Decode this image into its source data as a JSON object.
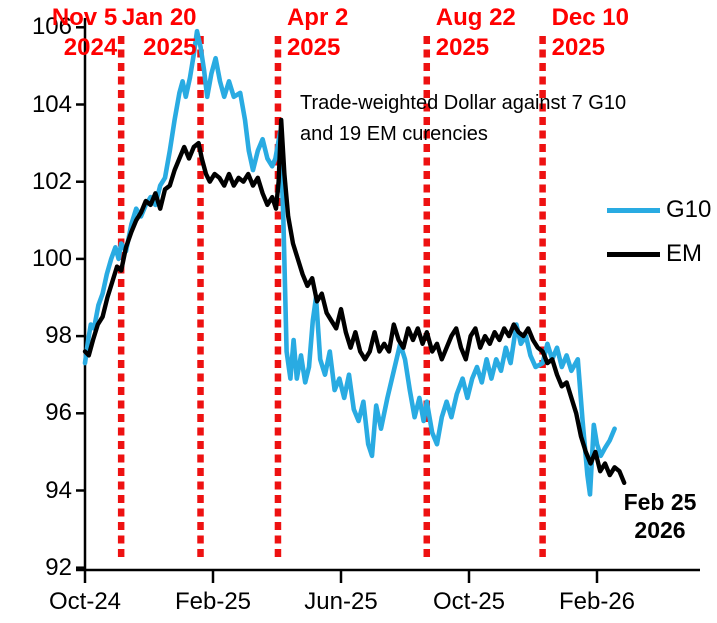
{
  "chart_data": {
    "type": "line",
    "annotation_lines": [
      "Trade-weighted Dollar against 7 G10",
      "and 19 EM curencies"
    ],
    "x_unit": "months since Oct-2024",
    "xlim": [
      0,
      19.2
    ],
    "ylim": [
      92,
      106
    ],
    "grid": false,
    "legend_position": "right",
    "y_ticks": [
      106,
      104,
      102,
      100,
      98,
      96,
      94,
      92
    ],
    "x_ticks": [
      {
        "pos": 0,
        "label": "Oct-24"
      },
      {
        "pos": 4,
        "label": "Feb-25"
      },
      {
        "pos": 8,
        "label": "Jun-25"
      },
      {
        "pos": 12,
        "label": "Oct-25"
      },
      {
        "pos": 16,
        "label": "Feb-26"
      }
    ],
    "event_lines": [
      {
        "pos": 1.13,
        "label_lines": [
          "Nov 5",
          "2024"
        ],
        "side": "left"
      },
      {
        "pos": 3.61,
        "label_lines": [
          "Jan 20",
          "2025"
        ],
        "side": "left"
      },
      {
        "pos": 6.03,
        "label_lines": [
          "Apr 2",
          "2025"
        ],
        "side": "right"
      },
      {
        "pos": 10.68,
        "label_lines": [
          "Aug 22",
          "2025"
        ],
        "side": "right"
      },
      {
        "pos": 14.3,
        "label_lines": [
          "Dec 10",
          "2025"
        ],
        "side": "right"
      }
    ],
    "end_label_lines": [
      "Feb 25",
      "2026"
    ],
    "colors": {
      "g10": "#29abe2",
      "em": "#000000",
      "event_line": "#ee1111",
      "event_text": "#ff0000",
      "axis": "#000000"
    },
    "legend": [
      {
        "name": "G10",
        "color": "#29abe2"
      },
      {
        "name": "EM",
        "color": "#000000"
      }
    ],
    "series": [
      {
        "name": "G10",
        "color": "#29abe2",
        "width": 4.6,
        "points": [
          [
            0.0,
            97.3
          ],
          [
            0.1,
            97.9
          ],
          [
            0.18,
            98.3
          ],
          [
            0.28,
            98.2
          ],
          [
            0.42,
            98.8
          ],
          [
            0.55,
            99.1
          ],
          [
            0.68,
            99.6
          ],
          [
            0.82,
            100.0
          ],
          [
            0.95,
            100.3
          ],
          [
            1.05,
            100.0
          ],
          [
            1.13,
            100.4
          ],
          [
            1.28,
            100.2
          ],
          [
            1.45,
            100.9
          ],
          [
            1.6,
            101.3
          ],
          [
            1.75,
            101.1
          ],
          [
            1.9,
            101.4
          ],
          [
            2.05,
            101.6
          ],
          [
            2.2,
            101.4
          ],
          [
            2.35,
            101.9
          ],
          [
            2.5,
            102.1
          ],
          [
            2.65,
            102.8
          ],
          [
            2.8,
            103.6
          ],
          [
            2.95,
            104.3
          ],
          [
            3.05,
            104.6
          ],
          [
            3.15,
            104.2
          ],
          [
            3.28,
            104.7
          ],
          [
            3.4,
            105.3
          ],
          [
            3.5,
            105.9
          ],
          [
            3.61,
            105.5
          ],
          [
            3.72,
            104.9
          ],
          [
            3.82,
            104.2
          ],
          [
            3.95,
            104.8
          ],
          [
            4.08,
            105.2
          ],
          [
            4.22,
            104.6
          ],
          [
            4.35,
            104.2
          ],
          [
            4.5,
            104.6
          ],
          [
            4.65,
            104.2
          ],
          [
            4.85,
            104.3
          ],
          [
            5.0,
            103.6
          ],
          [
            5.12,
            102.8
          ],
          [
            5.25,
            102.3
          ],
          [
            5.4,
            102.8
          ],
          [
            5.55,
            103.1
          ],
          [
            5.7,
            102.6
          ],
          [
            5.85,
            102.4
          ],
          [
            5.95,
            102.6
          ],
          [
            6.1,
            103.3
          ],
          [
            6.2,
            101.0
          ],
          [
            6.3,
            97.6
          ],
          [
            6.42,
            96.9
          ],
          [
            6.52,
            97.9
          ],
          [
            6.62,
            96.9
          ],
          [
            6.75,
            97.5
          ],
          [
            6.88,
            96.8
          ],
          [
            7.0,
            97.2
          ],
          [
            7.12,
            98.4
          ],
          [
            7.22,
            99.0
          ],
          [
            7.35,
            97.4
          ],
          [
            7.5,
            97.0
          ],
          [
            7.65,
            97.6
          ],
          [
            7.8,
            96.6
          ],
          [
            7.95,
            96.9
          ],
          [
            8.1,
            96.4
          ],
          [
            8.25,
            97.0
          ],
          [
            8.4,
            96.1
          ],
          [
            8.55,
            95.8
          ],
          [
            8.7,
            96.3
          ],
          [
            8.85,
            95.2
          ],
          [
            8.97,
            94.9
          ],
          [
            9.1,
            96.2
          ],
          [
            9.25,
            95.6
          ],
          [
            9.45,
            96.4
          ],
          [
            9.65,
            97.1
          ],
          [
            9.85,
            97.8
          ],
          [
            10.0,
            97.4
          ],
          [
            10.15,
            96.6
          ],
          [
            10.3,
            95.9
          ],
          [
            10.45,
            96.4
          ],
          [
            10.58,
            95.8
          ],
          [
            10.68,
            96.3
          ],
          [
            10.85,
            95.5
          ],
          [
            11.0,
            95.2
          ],
          [
            11.15,
            95.9
          ],
          [
            11.3,
            96.3
          ],
          [
            11.45,
            95.9
          ],
          [
            11.62,
            96.5
          ],
          [
            11.8,
            96.9
          ],
          [
            11.95,
            96.4
          ],
          [
            12.1,
            96.9
          ],
          [
            12.25,
            97.2
          ],
          [
            12.4,
            96.8
          ],
          [
            12.55,
            97.4
          ],
          [
            12.7,
            96.9
          ],
          [
            12.85,
            97.4
          ],
          [
            13.0,
            97.1
          ],
          [
            13.15,
            97.7
          ],
          [
            13.3,
            97.3
          ],
          [
            13.48,
            98.3
          ],
          [
            13.62,
            97.8
          ],
          [
            13.78,
            98.0
          ],
          [
            13.92,
            97.5
          ],
          [
            14.08,
            97.2
          ],
          [
            14.3,
            97.3
          ],
          [
            14.45,
            97.8
          ],
          [
            14.6,
            97.4
          ],
          [
            14.75,
            97.7
          ],
          [
            14.9,
            97.2
          ],
          [
            15.05,
            97.5
          ],
          [
            15.2,
            97.1
          ],
          [
            15.4,
            97.4
          ],
          [
            15.55,
            95.8
          ],
          [
            15.7,
            94.4
          ],
          [
            15.78,
            93.9
          ],
          [
            15.9,
            95.7
          ],
          [
            16.0,
            95.2
          ],
          [
            16.12,
            94.9
          ],
          [
            16.25,
            95.1
          ],
          [
            16.4,
            95.3
          ],
          [
            16.55,
            95.6
          ]
        ]
      },
      {
        "name": "EM",
        "color": "#000000",
        "width": 4.4,
        "points": [
          [
            0.0,
            97.6
          ],
          [
            0.12,
            97.5
          ],
          [
            0.25,
            97.9
          ],
          [
            0.4,
            98.3
          ],
          [
            0.55,
            98.5
          ],
          [
            0.7,
            99.0
          ],
          [
            0.85,
            99.4
          ],
          [
            1.0,
            99.8
          ],
          [
            1.13,
            99.7
          ],
          [
            1.28,
            100.3
          ],
          [
            1.45,
            100.7
          ],
          [
            1.6,
            101.0
          ],
          [
            1.75,
            101.2
          ],
          [
            1.9,
            101.5
          ],
          [
            2.05,
            101.4
          ],
          [
            2.2,
            101.7
          ],
          [
            2.35,
            101.3
          ],
          [
            2.5,
            101.8
          ],
          [
            2.65,
            101.9
          ],
          [
            2.8,
            102.3
          ],
          [
            2.95,
            102.6
          ],
          [
            3.1,
            102.9
          ],
          [
            3.25,
            102.6
          ],
          [
            3.4,
            102.9
          ],
          [
            3.55,
            103.0
          ],
          [
            3.65,
            102.6
          ],
          [
            3.78,
            102.2
          ],
          [
            3.9,
            102.0
          ],
          [
            4.05,
            102.2
          ],
          [
            4.2,
            102.1
          ],
          [
            4.35,
            101.9
          ],
          [
            4.5,
            102.2
          ],
          [
            4.65,
            101.9
          ],
          [
            4.8,
            102.1
          ],
          [
            4.95,
            102.0
          ],
          [
            5.1,
            102.2
          ],
          [
            5.25,
            101.9
          ],
          [
            5.4,
            102.1
          ],
          [
            5.55,
            101.7
          ],
          [
            5.7,
            101.4
          ],
          [
            5.85,
            101.6
          ],
          [
            5.97,
            101.3
          ],
          [
            6.05,
            102.0
          ],
          [
            6.13,
            103.6
          ],
          [
            6.23,
            102.2
          ],
          [
            6.35,
            101.1
          ],
          [
            6.5,
            100.4
          ],
          [
            6.65,
            100.0
          ],
          [
            6.8,
            99.6
          ],
          [
            6.95,
            99.3
          ],
          [
            7.1,
            99.5
          ],
          [
            7.25,
            98.9
          ],
          [
            7.4,
            99.1
          ],
          [
            7.55,
            98.6
          ],
          [
            7.7,
            98.4
          ],
          [
            7.85,
            98.2
          ],
          [
            8.0,
            98.7
          ],
          [
            8.15,
            98.1
          ],
          [
            8.3,
            97.7
          ],
          [
            8.45,
            98.1
          ],
          [
            8.6,
            97.6
          ],
          [
            8.75,
            97.4
          ],
          [
            8.9,
            97.6
          ],
          [
            9.05,
            98.1
          ],
          [
            9.2,
            97.6
          ],
          [
            9.35,
            97.8
          ],
          [
            9.5,
            97.6
          ],
          [
            9.65,
            98.3
          ],
          [
            9.8,
            97.9
          ],
          [
            9.95,
            97.7
          ],
          [
            10.1,
            98.2
          ],
          [
            10.25,
            97.9
          ],
          [
            10.4,
            98.2
          ],
          [
            10.55,
            97.8
          ],
          [
            10.68,
            98.1
          ],
          [
            10.85,
            97.6
          ],
          [
            11.0,
            97.8
          ],
          [
            11.15,
            97.4
          ],
          [
            11.3,
            97.7
          ],
          [
            11.45,
            98.0
          ],
          [
            11.6,
            98.2
          ],
          [
            11.75,
            97.7
          ],
          [
            11.9,
            97.4
          ],
          [
            12.05,
            98.0
          ],
          [
            12.2,
            98.2
          ],
          [
            12.35,
            97.7
          ],
          [
            12.5,
            98.0
          ],
          [
            12.65,
            97.8
          ],
          [
            12.8,
            98.1
          ],
          [
            12.95,
            97.9
          ],
          [
            13.1,
            98.2
          ],
          [
            13.25,
            98.0
          ],
          [
            13.4,
            98.3
          ],
          [
            13.55,
            98.1
          ],
          [
            13.7,
            98.0
          ],
          [
            13.85,
            98.2
          ],
          [
            14.0,
            97.9
          ],
          [
            14.15,
            97.7
          ],
          [
            14.3,
            97.6
          ],
          [
            14.45,
            97.3
          ],
          [
            14.6,
            97.4
          ],
          [
            14.75,
            97.0
          ],
          [
            14.9,
            96.7
          ],
          [
            15.05,
            96.8
          ],
          [
            15.2,
            96.4
          ],
          [
            15.35,
            96.0
          ],
          [
            15.5,
            95.4
          ],
          [
            15.65,
            95.0
          ],
          [
            15.8,
            94.7
          ],
          [
            15.95,
            95.0
          ],
          [
            16.1,
            94.5
          ],
          [
            16.25,
            94.7
          ],
          [
            16.4,
            94.4
          ],
          [
            16.55,
            94.6
          ],
          [
            16.7,
            94.5
          ],
          [
            16.85,
            94.2
          ]
        ]
      }
    ]
  }
}
